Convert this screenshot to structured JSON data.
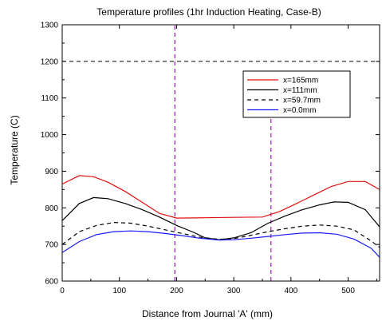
{
  "chart_data": {
    "type": "line",
    "title": "Temperature  profiles  (1hr Induction  Heating, Case-B)",
    "xlabel": "Distance from Journal 'A' (mm)",
    "ylabel": "Temperature (C)",
    "xlim": [
      0,
      555
    ],
    "ylim": [
      600,
      1300
    ],
    "xticks": [
      0,
      100,
      200,
      300,
      400,
      500
    ],
    "yticks": [
      600,
      700,
      800,
      900,
      1000,
      1100,
      1200,
      1300
    ],
    "grid": false,
    "legend_position": "top-right",
    "series": [
      {
        "name": "x=165mm",
        "color": "#e01010",
        "dash": "solid",
        "x": [
          0,
          30,
          55,
          80,
          110,
          140,
          170,
          200,
          250,
          300,
          350,
          380,
          410,
          440,
          470,
          500,
          530,
          555
        ],
        "y": [
          865,
          888,
          885,
          870,
          845,
          815,
          785,
          772,
          773,
          774,
          775,
          790,
          812,
          835,
          858,
          872,
          872,
          850
        ]
      },
      {
        "name": "x=111mm",
        "color": "#000000",
        "dash": "solid",
        "x": [
          0,
          30,
          55,
          80,
          110,
          140,
          170,
          200,
          230,
          250,
          275,
          300,
          330,
          360,
          390,
          420,
          450,
          475,
          500,
          530,
          555
        ],
        "y": [
          765,
          812,
          828,
          825,
          812,
          795,
          775,
          752,
          733,
          718,
          713,
          718,
          732,
          758,
          778,
          795,
          808,
          816,
          815,
          795,
          748
        ]
      },
      {
        "name": "x=59.7mm",
        "color": "#000000",
        "dash": "dashed",
        "x": [
          0,
          30,
          60,
          90,
          120,
          150,
          180,
          210,
          240,
          275,
          300,
          330,
          360,
          390,
          420,
          450,
          480,
          510,
          540,
          555
        ],
        "y": [
          700,
          735,
          752,
          760,
          758,
          750,
          740,
          730,
          720,
          714,
          716,
          725,
          735,
          743,
          750,
          753,
          750,
          740,
          710,
          692
        ]
      },
      {
        "name": "x=0.0mm",
        "color": "#1a1aff",
        "dash": "solid",
        "x": [
          0,
          30,
          60,
          90,
          120,
          150,
          180,
          210,
          240,
          275,
          300,
          330,
          360,
          390,
          420,
          450,
          480,
          510,
          540,
          555
        ],
        "y": [
          678,
          708,
          727,
          735,
          737,
          735,
          730,
          724,
          717,
          712,
          713,
          717,
          722,
          727,
          731,
          732,
          728,
          715,
          690,
          665
        ]
      }
    ],
    "reference_lines": [
      {
        "orientation": "horizontal",
        "value": 1200,
        "color": "#000000",
        "dash": "dashed",
        "from": 0,
        "to": 555
      },
      {
        "orientation": "vertical",
        "value": 197,
        "color": "#9c1ab8",
        "dash": "dashed",
        "from": 600,
        "to": 1300
      },
      {
        "orientation": "vertical",
        "value": 365,
        "color": "#9c1ab8",
        "dash": "dashed",
        "from": 600,
        "to": 1125
      }
    ]
  }
}
